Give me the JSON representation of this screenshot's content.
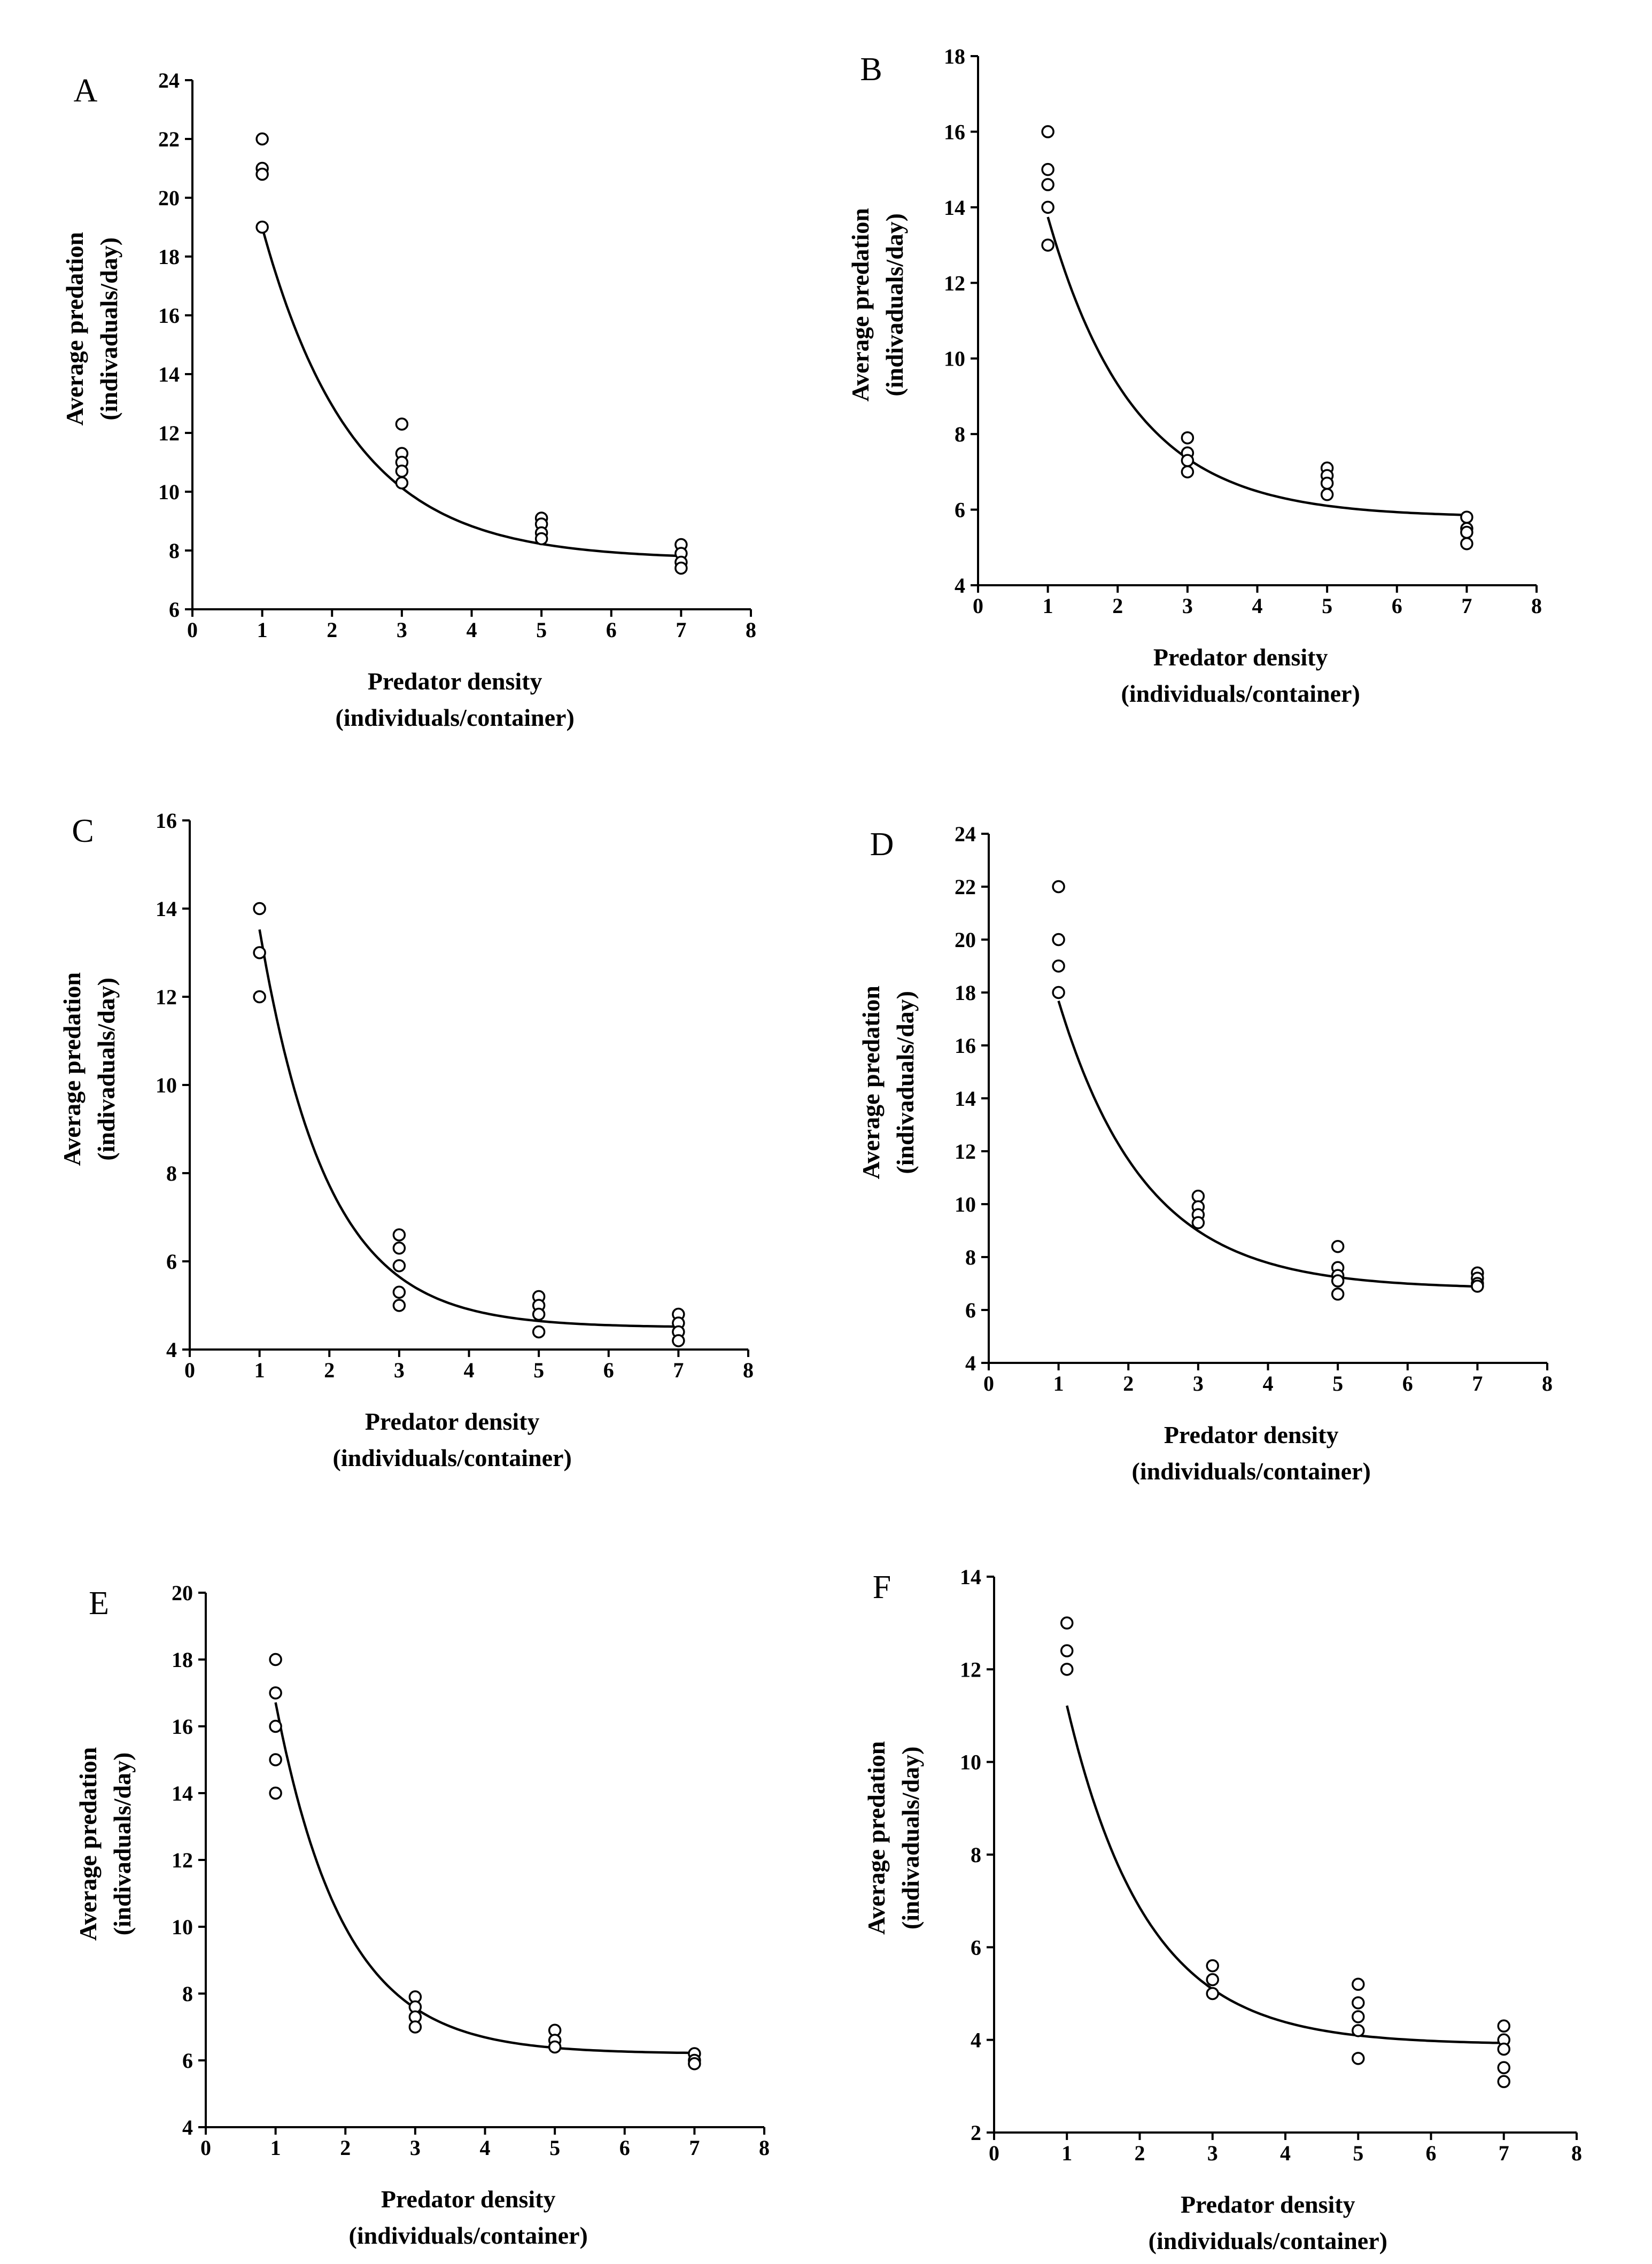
{
  "chart_data": [
    {
      "type": "scatter",
      "panel": "A",
      "xlabel": [
        "Predator density",
        "(individuals/container)"
      ],
      "ylabel": [
        "Average predation",
        "(indivaduals/day)"
      ],
      "xlim": [
        0,
        8
      ],
      "xticks": [
        0,
        1,
        2,
        3,
        4,
        5,
        6,
        7,
        8
      ],
      "ylim": [
        6,
        24
      ],
      "yticks": [
        6,
        8,
        10,
        12,
        14,
        16,
        18,
        20,
        22,
        24
      ],
      "points": [
        [
          1,
          22
        ],
        [
          1,
          21
        ],
        [
          1,
          20.8
        ],
        [
          1,
          19
        ],
        [
          3,
          12.3
        ],
        [
          3,
          11.3
        ],
        [
          3,
          11
        ],
        [
          3,
          10.7
        ],
        [
          3,
          10.3
        ],
        [
          5,
          9.1
        ],
        [
          5,
          8.9
        ],
        [
          5,
          8.6
        ],
        [
          5,
          8.4
        ],
        [
          7,
          8.2
        ],
        [
          7,
          7.9
        ],
        [
          7,
          7.6
        ],
        [
          7,
          7.4
        ]
      ],
      "fit": {
        "model": "exponential",
        "a": 7.7,
        "b": 24.32,
        "k": 0.7677
      }
    },
    {
      "type": "scatter",
      "panel": "B",
      "xlabel": [
        "Predator density",
        "(individuals/container)"
      ],
      "ylabel": [
        "Average predation",
        "(indivaduals/day)"
      ],
      "xlim": [
        0,
        8
      ],
      "xticks": [
        0,
        1,
        2,
        3,
        4,
        5,
        6,
        7,
        8
      ],
      "ylim": [
        4,
        18
      ],
      "yticks": [
        4,
        6,
        8,
        10,
        12,
        14,
        16,
        18
      ],
      "points": [
        [
          1,
          16
        ],
        [
          1,
          15
        ],
        [
          1,
          14.6
        ],
        [
          1,
          14
        ],
        [
          1,
          13
        ],
        [
          3,
          7.9
        ],
        [
          3,
          7.5
        ],
        [
          3,
          7.3
        ],
        [
          3,
          7
        ],
        [
          5,
          7.1
        ],
        [
          5,
          6.9
        ],
        [
          5,
          6.7
        ],
        [
          5,
          6.4
        ],
        [
          7,
          5.8
        ],
        [
          7,
          5.5
        ],
        [
          7,
          5.4
        ],
        [
          7,
          5.1
        ]
      ],
      "fit": {
        "model": "exponential",
        "a": 5.8,
        "b": 17.97,
        "k": 0.8163
      }
    },
    {
      "type": "scatter",
      "panel": "C",
      "xlabel": [
        "Predator density",
        "(individuals/container)"
      ],
      "ylabel": [
        "Average predation",
        "(indivaduals/day)"
      ],
      "xlim": [
        0,
        8
      ],
      "xticks": [
        0,
        1,
        2,
        3,
        4,
        5,
        6,
        7,
        8
      ],
      "ylim": [
        4,
        16
      ],
      "yticks": [
        4,
        6,
        8,
        10,
        12,
        14,
        16
      ],
      "points": [
        [
          1,
          14
        ],
        [
          1,
          13
        ],
        [
          1,
          12
        ],
        [
          3,
          6.6
        ],
        [
          3,
          6.3
        ],
        [
          3,
          5.9
        ],
        [
          3,
          5.3
        ],
        [
          3,
          5
        ],
        [
          5,
          5.2
        ],
        [
          5,
          5
        ],
        [
          5,
          4.8
        ],
        [
          5,
          4.4
        ],
        [
          7,
          4.8
        ],
        [
          7,
          4.6
        ],
        [
          7,
          4.4
        ],
        [
          7,
          4.2
        ]
      ],
      "fit": {
        "model": "exponential",
        "a": 4.5,
        "b": 25.27,
        "k": 1.0297
      }
    },
    {
      "type": "scatter",
      "panel": "D",
      "xlabel": [
        "Predator density",
        "(individuals/container)"
      ],
      "ylabel": [
        "Average predation",
        "(indivaduals/day)"
      ],
      "xlim": [
        0,
        8
      ],
      "xticks": [
        0,
        1,
        2,
        3,
        4,
        5,
        6,
        7,
        8
      ],
      "ylim": [
        4,
        24
      ],
      "yticks": [
        4,
        6,
        8,
        10,
        12,
        14,
        16,
        18,
        20,
        22,
        24
      ],
      "points": [
        [
          1,
          22
        ],
        [
          1,
          20
        ],
        [
          1,
          19
        ],
        [
          1,
          18
        ],
        [
          3,
          10.3
        ],
        [
          3,
          9.9
        ],
        [
          3,
          9.6
        ],
        [
          3,
          9.3
        ],
        [
          5,
          8.4
        ],
        [
          5,
          7.6
        ],
        [
          5,
          7.3
        ],
        [
          5,
          7.1
        ],
        [
          5,
          6.6
        ],
        [
          7,
          7.4
        ],
        [
          7,
          7.2
        ],
        [
          7,
          7
        ],
        [
          7,
          6.9
        ]
      ],
      "fit": {
        "model": "exponential",
        "a": 6.8,
        "b": 24.28,
        "k": 0.8024
      }
    },
    {
      "type": "scatter",
      "panel": "E",
      "xlabel": [
        "Predator density",
        "(individuals/container)"
      ],
      "ylabel": [
        "Average predation",
        "(indivaduals/day)"
      ],
      "xlim": [
        0,
        8
      ],
      "xticks": [
        0,
        1,
        2,
        3,
        4,
        5,
        6,
        7,
        8
      ],
      "ylim": [
        4,
        20
      ],
      "yticks": [
        4,
        6,
        8,
        10,
        12,
        14,
        16,
        18,
        20
      ],
      "points": [
        [
          1,
          18
        ],
        [
          1,
          17
        ],
        [
          1,
          16
        ],
        [
          1,
          15
        ],
        [
          1,
          14
        ],
        [
          3,
          7.9
        ],
        [
          3,
          7.6
        ],
        [
          3,
          7.3
        ],
        [
          3,
          7
        ],
        [
          5,
          6.9
        ],
        [
          5,
          6.6
        ],
        [
          5,
          6.4
        ],
        [
          7,
          6.2
        ],
        [
          7,
          6
        ],
        [
          7,
          5.9
        ]
      ],
      "fit": {
        "model": "exponential",
        "a": 6.2,
        "b": 29.23,
        "k": 1.0224
      }
    },
    {
      "type": "scatter",
      "panel": "F",
      "xlabel": [
        "Predator density",
        "(individuals/container)"
      ],
      "ylabel": [
        "Average predation",
        "(indivaduals/day)"
      ],
      "xlim": [
        0,
        8
      ],
      "xticks": [
        0,
        1,
        2,
        3,
        4,
        5,
        6,
        7,
        8
      ],
      "ylim": [
        2,
        14
      ],
      "yticks": [
        2,
        4,
        6,
        8,
        10,
        12,
        14
      ],
      "points": [
        [
          1,
          13
        ],
        [
          1,
          12.4
        ],
        [
          1,
          12
        ],
        [
          3,
          5.6
        ],
        [
          3,
          5.3
        ],
        [
          3,
          5
        ],
        [
          5,
          5.2
        ],
        [
          5,
          4.8
        ],
        [
          5,
          4.5
        ],
        [
          5,
          4.2
        ],
        [
          5,
          3.6
        ],
        [
          7,
          4.3
        ],
        [
          7,
          4
        ],
        [
          7,
          3.8
        ],
        [
          7,
          3.4
        ],
        [
          7,
          3.1
        ]
      ],
      "fit": {
        "model": "exponential",
        "a": 3.9,
        "b": 18.1,
        "k": 0.9059
      }
    }
  ]
}
